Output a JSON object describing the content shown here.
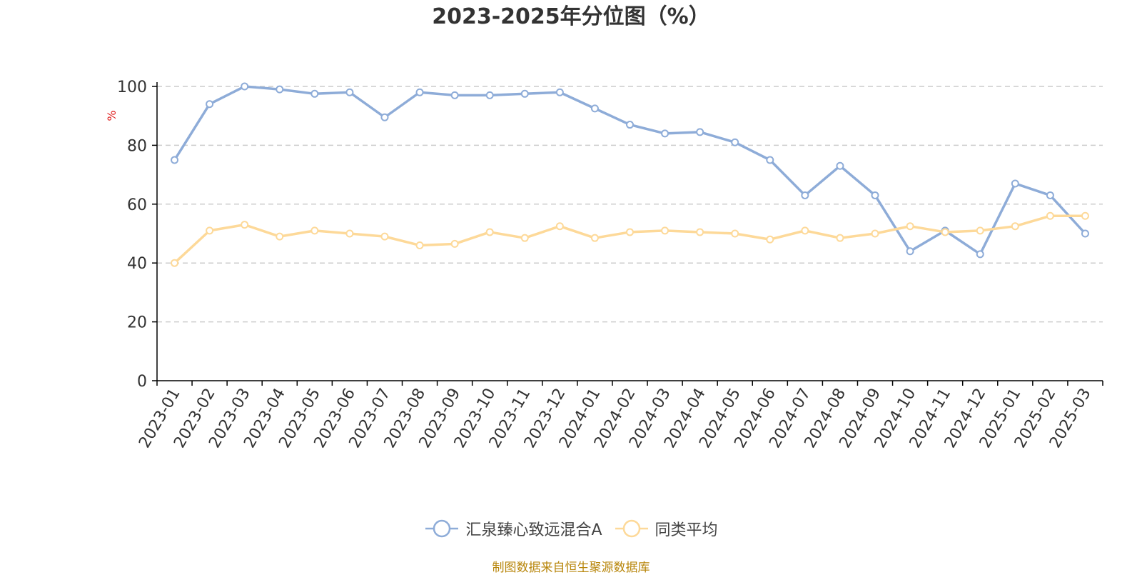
{
  "title": "2023-2025年分位图（%）",
  "source": "制图数据来自恒生聚源数据库",
  "colors": {
    "series1": "#8eacd8",
    "series2": "#fdd999",
    "ylabel": "#e02020",
    "source": "#b8860b",
    "grid": "#cccccc",
    "axis": "#000000",
    "text": "#333333"
  },
  "chart_data": {
    "type": "line",
    "title": "2023-2025年分位图（%）",
    "xlabel": "",
    "ylabel": "%",
    "ylim": [
      0,
      100
    ],
    "yticks": [
      0,
      20,
      40,
      60,
      80,
      100
    ],
    "grid": true,
    "legend": "bottom-center",
    "categories": [
      "2023-01",
      "2023-02",
      "2023-03",
      "2023-04",
      "2023-05",
      "2023-06",
      "2023-07",
      "2023-08",
      "2023-09",
      "2023-10",
      "2023-11",
      "2023-12",
      "2024-01",
      "2024-02",
      "2024-03",
      "2024-04",
      "2024-05",
      "2024-06",
      "2024-07",
      "2024-08",
      "2024-09",
      "2024-10",
      "2024-11",
      "2024-12",
      "2025-01",
      "2025-02",
      "2025-03"
    ],
    "series": [
      {
        "name": "汇泉臻心致远混合A",
        "color": "#8eacd8",
        "values": [
          75,
          94,
          100,
          99,
          97.5,
          98,
          89.5,
          98,
          97,
          97,
          97.5,
          98,
          92.5,
          87,
          84,
          84.5,
          81,
          75,
          63,
          73,
          63,
          44,
          51,
          43,
          67,
          63,
          50
        ]
      },
      {
        "name": "同类平均",
        "color": "#fdd999",
        "values": [
          40,
          51,
          53,
          49,
          51,
          50,
          49,
          46,
          46.5,
          50.5,
          48.5,
          52.5,
          48.5,
          50.5,
          51,
          50.5,
          50,
          48,
          51,
          48.5,
          50,
          52.5,
          50.5,
          51,
          52.5,
          56,
          56
        ]
      }
    ]
  }
}
